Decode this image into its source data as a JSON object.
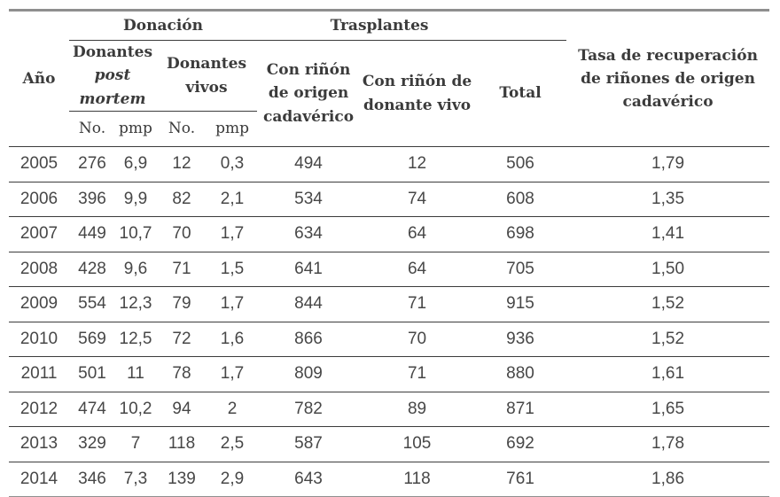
{
  "colors": {
    "text_header": "#3b3b3b",
    "text_data": "#474747",
    "rule_thick": "#8f8f8f",
    "rule_thin": "#3c3c3c",
    "background": "#ffffff"
  },
  "table": {
    "groups": {
      "donacion": "Donación",
      "trasplantes": "Trasplantes"
    },
    "headers": {
      "ano": "Año",
      "donantes_post_mortem": {
        "plain": "Donantes",
        "italic": "post mortem"
      },
      "donantes_vivos": "Donantes vivos",
      "sub_no_1": "No.",
      "sub_pmp_1": "pmp",
      "sub_no_2": "No.",
      "sub_pmp_2": "pmp",
      "con_rinon_cadaverico": "Con riñón de origen cadavérico",
      "con_rinon_vivo": "Con riñón de donante vivo",
      "total": "Total",
      "tasa": "Tasa de recuperación de riñones de origen cadavérico"
    },
    "fields": [
      "ano",
      "pm_no",
      "pm_pmp",
      "vivos_no",
      "vivos_pmp",
      "trasplante_cadaverico",
      "trasplante_vivo",
      "total",
      "tasa"
    ],
    "rows": [
      [
        "2005",
        "276",
        "6,9",
        "12",
        "0,3",
        "494",
        "12",
        "506",
        "1,79"
      ],
      [
        "2006",
        "396",
        "9,9",
        "82",
        "2,1",
        "534",
        "74",
        "608",
        "1,35"
      ],
      [
        "2007",
        "449",
        "10,7",
        "70",
        "1,7",
        "634",
        "64",
        "698",
        "1,41"
      ],
      [
        "2008",
        "428",
        "9,6",
        "71",
        "1,5",
        "641",
        "64",
        "705",
        "1,50"
      ],
      [
        "2009",
        "554",
        "12,3",
        "79",
        "1,7",
        "844",
        "71",
        "915",
        "1,52"
      ],
      [
        "2010",
        "569",
        "12,5",
        "72",
        "1,6",
        "866",
        "70",
        "936",
        "1,52"
      ],
      [
        "2011",
        "501",
        "11",
        "78",
        "1,7",
        "809",
        "71",
        "880",
        "1,61"
      ],
      [
        "2012",
        "474",
        "10,2",
        "94",
        "2",
        "782",
        "89",
        "871",
        "1,65"
      ],
      [
        "2013",
        "329",
        "7",
        "118",
        "2,5",
        "587",
        "105",
        "692",
        "1,78"
      ],
      [
        "2014",
        "346",
        "7,3",
        "139",
        "2,9",
        "643",
        "118",
        "761",
        "1,86"
      ]
    ]
  }
}
